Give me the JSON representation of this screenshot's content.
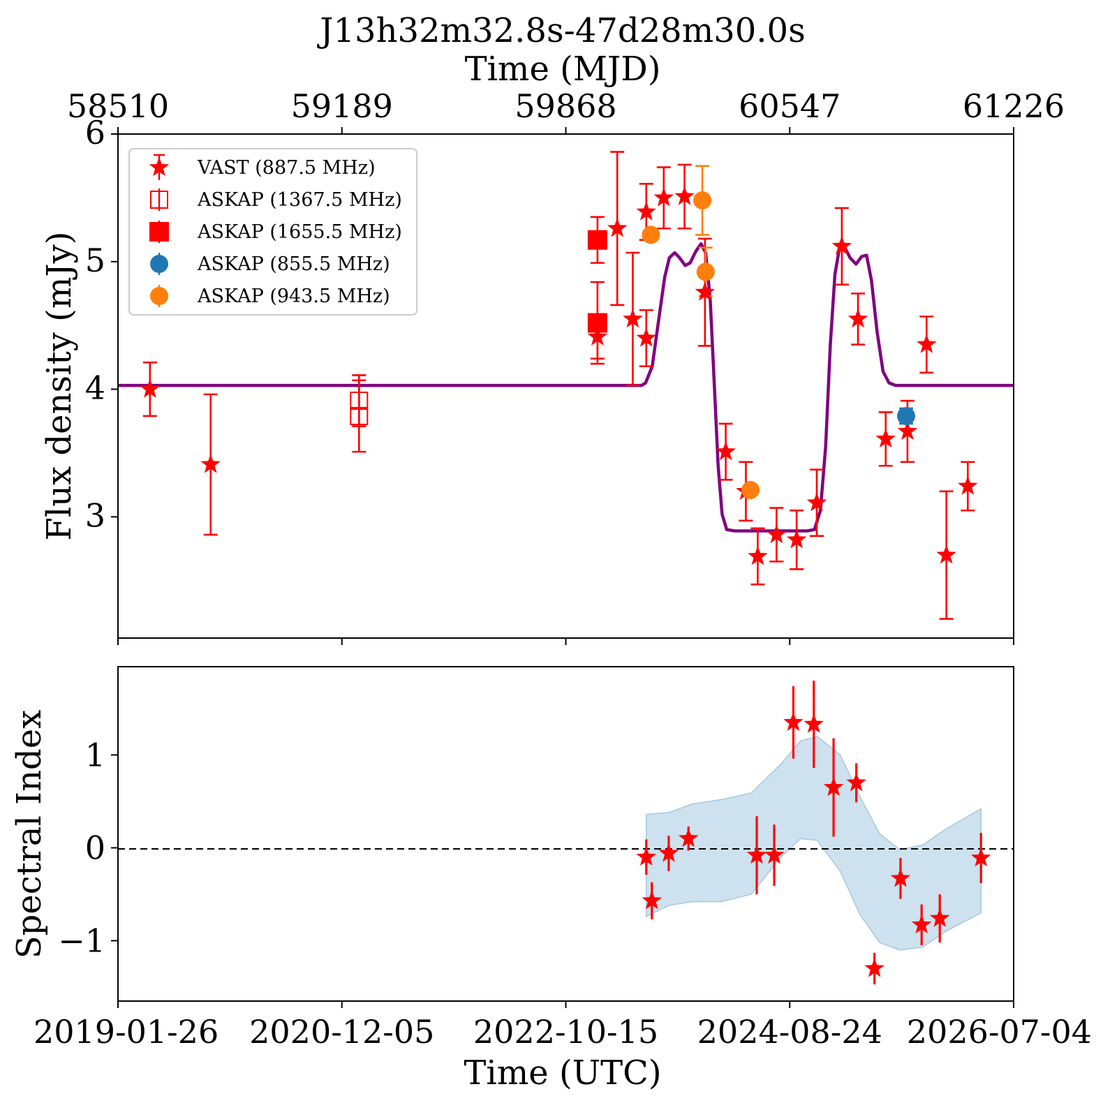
{
  "figure": {
    "title": "J13h32m32.8s-47d28m30.0s",
    "top_axis_label": "Time (MJD)",
    "top_axis_ticks": [
      "58510",
      "59189",
      "59868",
      "60547",
      "61226"
    ],
    "bottom_axis_label": "Time (UTC)",
    "bottom_axis_ticks": [
      "2019-01-26",
      "2020-12-05",
      "2022-10-15",
      "2024-08-24",
      "2026-07-04"
    ],
    "upper_ylabel": "Flux density (mJy)",
    "lower_ylabel": "Spectral Index"
  },
  "legend": [
    {
      "label": "VAST (887.5 MHz)",
      "marker": "star-icon",
      "color": "#ff0000"
    },
    {
      "label": "ASKAP (1367.5 MHz)",
      "marker": "open-square-icon",
      "color": "#ff0000"
    },
    {
      "label": "ASKAP (1655.5 MHz)",
      "marker": "filled-square-icon",
      "color": "#ff0000"
    },
    {
      "label": "ASKAP (855.5 MHz)",
      "marker": "circle-icon",
      "color": "#1f77b4"
    },
    {
      "label": "ASKAP (943.5 MHz)",
      "marker": "circle-icon",
      "color": "#ff7f0e"
    }
  ],
  "chart_data": [
    {
      "type": "scatter",
      "panel": "flux-density",
      "title": "J13h32m32.8s-47d28m30.0s",
      "xlabel": "Time (MJD)",
      "ylabel": "Flux density (mJy)",
      "xlim": [
        58510,
        61226
      ],
      "ylim": [
        2.05,
        6.0
      ],
      "yticks": [
        3,
        4,
        5,
        6
      ],
      "grid": false,
      "legend_position": "upper-left",
      "colors": {
        "vast": "#ff0000",
        "askap_855": "#1f77b4",
        "askap_943": "#ff7f0e",
        "model": "#800080"
      },
      "series": [
        {
          "name": "VAST (887.5 MHz)",
          "marker": "star",
          "points": [
            {
              "x": 58607,
              "y": 4.0,
              "err": 0.21
            },
            {
              "x": 58791,
              "y": 3.41,
              "err": 0.55
            },
            {
              "x": 59964,
              "y": 4.41,
              "err": 0.17
            },
            {
              "x": 60024,
              "y": 5.26,
              "err": 0.6
            },
            {
              "x": 60071,
              "y": 4.55,
              "err": 0.52
            },
            {
              "x": 60112,
              "y": 5.39,
              "err": 0.22
            },
            {
              "x": 60112,
              "y": 4.4,
              "err": 0.22
            },
            {
              "x": 60165,
              "y": 5.5,
              "err": 0.24
            },
            {
              "x": 60228,
              "y": 5.51,
              "err": 0.25
            },
            {
              "x": 60290,
              "y": 4.76,
              "err": 0.42
            },
            {
              "x": 60353,
              "y": 3.51,
              "err": 0.22
            },
            {
              "x": 60414,
              "y": 3.2,
              "err": 0.23
            },
            {
              "x": 60450,
              "y": 2.69,
              "err": 0.22
            },
            {
              "x": 60507,
              "y": 2.86,
              "err": 0.21
            },
            {
              "x": 60568,
              "y": 2.82,
              "err": 0.23
            },
            {
              "x": 60629,
              "y": 3.11,
              "err": 0.26
            },
            {
              "x": 60705,
              "y": 5.12,
              "err": 0.3
            },
            {
              "x": 60754,
              "y": 4.55,
              "err": 0.2
            },
            {
              "x": 60838,
              "y": 3.61,
              "err": 0.21
            },
            {
              "x": 60904,
              "y": 3.67,
              "err": 0.24
            },
            {
              "x": 60962,
              "y": 4.35,
              "err": 0.22
            },
            {
              "x": 61022,
              "y": 2.7,
              "err": 0.5
            },
            {
              "x": 61087,
              "y": 3.24,
              "err": 0.19
            }
          ]
        },
        {
          "name": "ASKAP (1367.5 MHz)",
          "marker": "open-square",
          "points": [
            {
              "x": 59241,
              "y": 3.91,
              "err": 0.2
            },
            {
              "x": 59241,
              "y": 3.79,
              "err": 0.28
            }
          ]
        },
        {
          "name": "ASKAP (1655.5 MHz)",
          "marker": "filled-square",
          "points": [
            {
              "x": 59964,
              "y": 5.17,
              "err": 0.18
            },
            {
              "x": 59964,
              "y": 4.52,
              "err": 0.32
            }
          ]
        },
        {
          "name": "ASKAP (855.5 MHz)",
          "marker": "circle",
          "points": [
            {
              "x": 60900,
              "y": 3.79,
              "err": 0.06
            }
          ]
        },
        {
          "name": "ASKAP (943.5 MHz)",
          "marker": "circle",
          "points": [
            {
              "x": 60126,
              "y": 5.21,
              "err": 0.03
            },
            {
              "x": 60282,
              "y": 5.48,
              "err": 0.27
            },
            {
              "x": 60292,
              "y": 4.92,
              "err": 0.19
            },
            {
              "x": 60428,
              "y": 3.21,
              "err": 0.03
            }
          ]
        }
      ],
      "model_curve": {
        "color": "#800080",
        "points": [
          [
            58510,
            4.03
          ],
          [
            60098,
            4.03
          ],
          [
            60110,
            4.05
          ],
          [
            60130,
            4.18
          ],
          [
            60150,
            4.55
          ],
          [
            60168,
            4.88
          ],
          [
            60182,
            5.03
          ],
          [
            60198,
            5.07
          ],
          [
            60213,
            5.03
          ],
          [
            60230,
            4.97
          ],
          [
            60245,
            4.99
          ],
          [
            60262,
            5.08
          ],
          [
            60278,
            5.14
          ],
          [
            60292,
            5.07
          ],
          [
            60306,
            4.7
          ],
          [
            60318,
            4.05
          ],
          [
            60330,
            3.4
          ],
          [
            60342,
            3.02
          ],
          [
            60356,
            2.9
          ],
          [
            60380,
            2.89
          ],
          [
            60600,
            2.89
          ],
          [
            60622,
            2.9
          ],
          [
            60640,
            3.05
          ],
          [
            60656,
            3.55
          ],
          [
            60670,
            4.35
          ],
          [
            60684,
            4.9
          ],
          [
            60698,
            5.11
          ],
          [
            60712,
            5.12
          ],
          [
            60730,
            5.03
          ],
          [
            60748,
            4.98
          ],
          [
            60765,
            5.04
          ],
          [
            60780,
            5.05
          ],
          [
            60795,
            4.85
          ],
          [
            60812,
            4.45
          ],
          [
            60830,
            4.14
          ],
          [
            60848,
            4.05
          ],
          [
            60868,
            4.03
          ],
          [
            61226,
            4.03
          ]
        ]
      }
    },
    {
      "type": "scatter",
      "panel": "spectral-index",
      "xlabel": "Time (UTC)",
      "ylabel": "Spectral Index",
      "xlim": [
        58510,
        61226
      ],
      "ylim": [
        -1.65,
        1.95
      ],
      "yticks": [
        -1,
        0,
        1
      ],
      "grid": false,
      "reference_line": {
        "y": 0,
        "style": "dashed",
        "color": "#000000"
      },
      "series": [
        {
          "name": "",
          "marker": "star",
          "color": "#ff0000",
          "points": [
            {
              "x": 60112,
              "y": -0.1,
              "err": 0.19
            },
            {
              "x": 60129,
              "y": -0.57,
              "err": 0.2
            },
            {
              "x": 60180,
              "y": -0.06,
              "err": 0.19
            },
            {
              "x": 60240,
              "y": 0.1,
              "err": 0.13
            },
            {
              "x": 60447,
              "y": -0.08,
              "err": 0.42
            },
            {
              "x": 60500,
              "y": -0.08,
              "err": 0.33
            },
            {
              "x": 60558,
              "y": 1.35,
              "err": 0.39
            },
            {
              "x": 60620,
              "y": 1.33,
              "err": 0.47
            },
            {
              "x": 60680,
              "y": 0.65,
              "err": 0.53
            },
            {
              "x": 60749,
              "y": 0.7,
              "err": 0.21
            },
            {
              "x": 60804,
              "y": -1.3,
              "err": 0.17
            },
            {
              "x": 60883,
              "y": -0.33,
              "err": 0.22
            },
            {
              "x": 60947,
              "y": -0.83,
              "err": 0.22
            },
            {
              "x": 61002,
              "y": -0.76,
              "err": 0.26
            },
            {
              "x": 61127,
              "y": -0.11,
              "err": 0.27
            }
          ]
        }
      ],
      "confidence_band": {
        "color": "#a6c8e0",
        "points": [
          {
            "x": 60112,
            "upper": 0.36,
            "lower": -0.74
          },
          {
            "x": 60180,
            "upper": 0.38,
            "lower": -0.62
          },
          {
            "x": 60250,
            "upper": 0.47,
            "lower": -0.58
          },
          {
            "x": 60340,
            "upper": 0.52,
            "lower": -0.58
          },
          {
            "x": 60430,
            "upper": 0.59,
            "lower": -0.5
          },
          {
            "x": 60520,
            "upper": 0.9,
            "lower": -0.1
          },
          {
            "x": 60580,
            "upper": 1.15,
            "lower": 0.1
          },
          {
            "x": 60630,
            "upper": 1.2,
            "lower": 0.08
          },
          {
            "x": 60700,
            "upper": 1.0,
            "lower": -0.25
          },
          {
            "x": 60760,
            "upper": 0.55,
            "lower": -0.72
          },
          {
            "x": 60820,
            "upper": 0.15,
            "lower": -1.02
          },
          {
            "x": 60880,
            "upper": -0.02,
            "lower": -1.1
          },
          {
            "x": 60950,
            "upper": 0.03,
            "lower": -1.07
          },
          {
            "x": 61020,
            "upper": 0.2,
            "lower": -0.9
          },
          {
            "x": 61127,
            "upper": 0.42,
            "lower": -0.7
          }
        ]
      }
    }
  ]
}
